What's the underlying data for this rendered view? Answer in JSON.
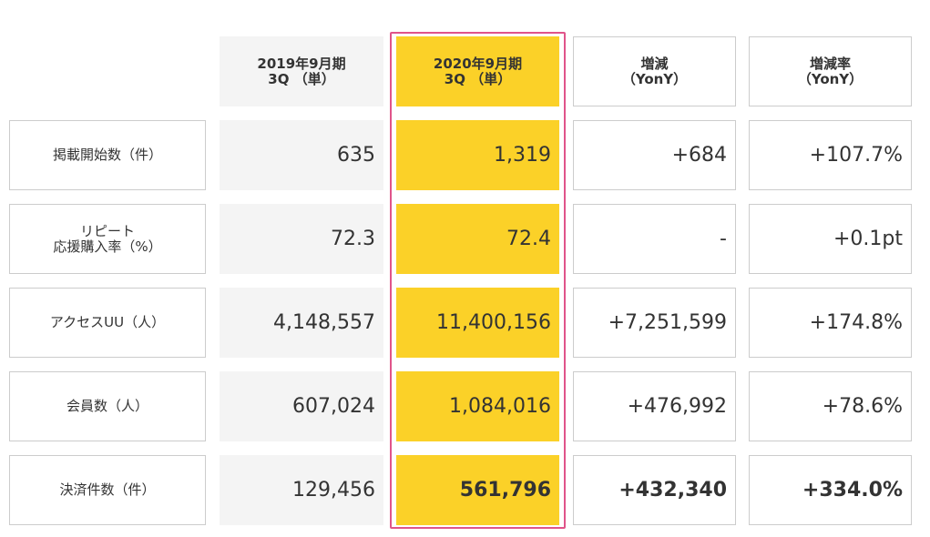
{
  "headers": [
    {
      "line1": "2019年9月期",
      "line2": "3Q （単）"
    },
    {
      "line1": "2020年9月期",
      "line2": "3Q （単）"
    },
    {
      "line1": "増減",
      "line2": "（YonY）"
    },
    {
      "line1": "増減率",
      "line2": "（YonY）"
    }
  ],
  "rows": [
    {
      "label_lines": [
        "掲載開始数（件）"
      ],
      "v2019": "635",
      "v2020": "1,319",
      "diff": "+684",
      "rate": "+107.7%"
    },
    {
      "label_lines": [
        "リピート",
        "応援購入率（%）"
      ],
      "v2019": "72.3",
      "v2020": "72.4",
      "diff": "-",
      "rate": "+0.1pt"
    },
    {
      "label_lines": [
        "アクセスUU（人）"
      ],
      "v2019": "4,148,557",
      "v2020": "11,400,156",
      "diff": "+7,251,599",
      "rate": "+174.8%"
    },
    {
      "label_lines": [
        "会員数（人）"
      ],
      "v2019": "607,024",
      "v2020": "1,084,016",
      "diff": "+476,992",
      "rate": "+78.6%"
    },
    {
      "label_lines": [
        "決済件数（件）"
      ],
      "v2019": "129,456",
      "v2020": "561,796",
      "diff": "+432,340",
      "rate": "+334.0%"
    }
  ],
  "colors": {
    "highlight_fill": "#fbd128",
    "highlight_border": "#e0548a",
    "gray_fill": "#f4f4f4"
  }
}
